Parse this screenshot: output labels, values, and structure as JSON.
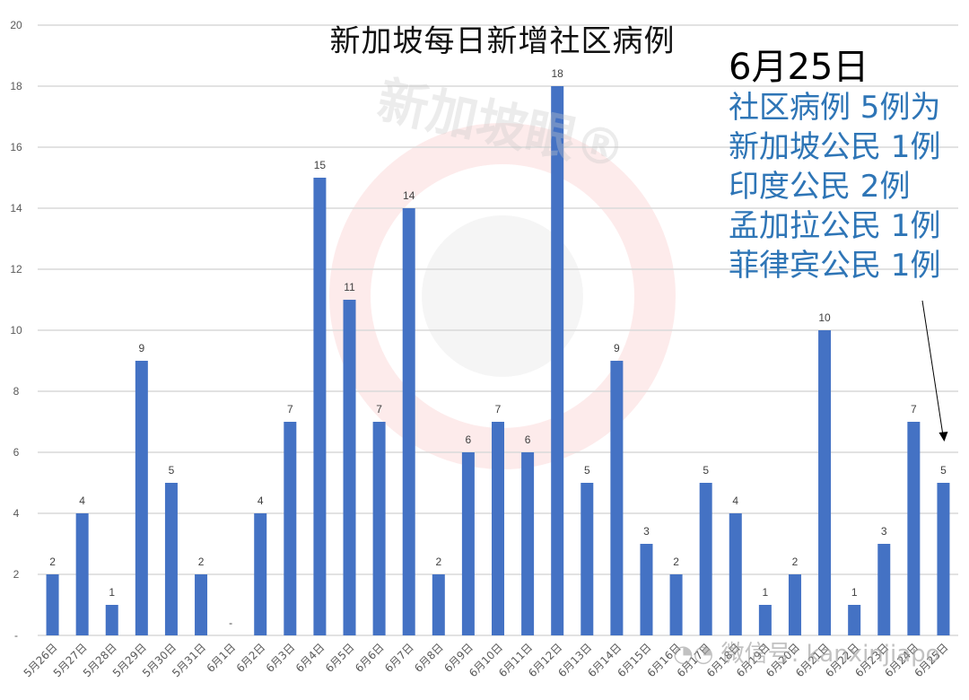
{
  "chart_data": {
    "type": "bar",
    "title": "新加坡每日新增社区病例",
    "xlabel": "",
    "ylabel": "",
    "ylim": [
      0,
      20
    ],
    "yticks": [
      "-",
      "2",
      "4",
      "6",
      "8",
      "10",
      "12",
      "14",
      "16",
      "18",
      "20"
    ],
    "grid": true,
    "legend": null,
    "bar_color": "#4472c4",
    "categories": [
      "5月26日",
      "5月27日",
      "5月28日",
      "5月29日",
      "5月30日",
      "5月31日",
      "6月1日",
      "6月2日",
      "6月3日",
      "6月4日",
      "6月5日",
      "6月6日",
      "6月7日",
      "6月8日",
      "6月9日",
      "6月10日",
      "6月11日",
      "6月12日",
      "6月13日",
      "6月14日",
      "6月15日",
      "6月16日",
      "6月17日",
      "6月18日",
      "6月19日",
      "6月20日",
      "6月21日",
      "6月22日",
      "6月23日",
      "6月24日",
      "6月25日"
    ],
    "values": [
      2,
      4,
      1,
      9,
      5,
      2,
      0,
      4,
      7,
      15,
      11,
      7,
      14,
      2,
      6,
      7,
      6,
      18,
      5,
      9,
      3,
      2,
      5,
      4,
      1,
      2,
      10,
      1,
      3,
      7,
      5
    ],
    "value_labels": [
      "2",
      "4",
      "1",
      "9",
      "5",
      "2",
      "-",
      "4",
      "7",
      "15",
      "11",
      "7",
      "14",
      "2",
      "6",
      "7",
      "6",
      "18",
      "5",
      "9",
      "3",
      "2",
      "5",
      "4",
      "1",
      "2",
      "10",
      "1",
      "3",
      "7",
      "5"
    ],
    "annotation": {
      "date": "6月25日",
      "lines": [
        "社区病例 5例为",
        "新加坡公民 1例",
        "印度公民 2例",
        "孟加拉公民 1例",
        "菲律宾公民 1例"
      ],
      "color": "#2e75b6",
      "arrow_target": "6月25日"
    }
  },
  "watermarks": {
    "brand": "新加坡眼®",
    "wechat": "微信号: kanxinjiapo"
  }
}
